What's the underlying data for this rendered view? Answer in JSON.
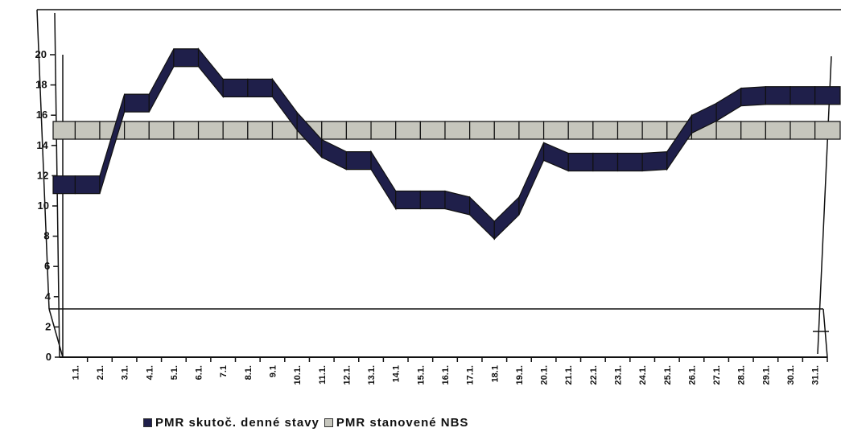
{
  "chart_data": {
    "type": "line",
    "categories": [
      "1.1.",
      "2.1.",
      "3.1.",
      "4.1.",
      "5.1.",
      "6.1.",
      "7.1",
      "8.1.",
      "9.1",
      "10.1.",
      "11.1.",
      "12.1.",
      "13.1.",
      "14.1",
      "15.1.",
      "16.1.",
      "17.1.",
      "18.1",
      "19.1.",
      "20.1.",
      "21.1.",
      "22.1.",
      "23.1.",
      "24.1.",
      "25.1.",
      "26.1.",
      "27.1.",
      "28.1.",
      "29.1.",
      "30.1.",
      "31.1."
    ],
    "series": [
      {
        "name": "PMR skutoč. denné stavy",
        "color": "#1f1f4a",
        "values": [
          11.4,
          11.4,
          16.8,
          16.8,
          19.8,
          19.8,
          17.8,
          17.8,
          17.8,
          15.6,
          13.8,
          13.0,
          13.0,
          10.4,
          10.4,
          10.4,
          10.0,
          8.4,
          10.0,
          13.6,
          12.9,
          12.9,
          12.9,
          12.9,
          13.0,
          15.4,
          16.2,
          17.2,
          17.3,
          17.3,
          17.3
        ]
      },
      {
        "name": "PMR stanovené NBS",
        "color": "#c6c6bd",
        "values": [
          15.0,
          15.0,
          15.0,
          15.0,
          15.0,
          15.0,
          15.0,
          15.0,
          15.0,
          15.0,
          15.0,
          15.0,
          15.0,
          15.0,
          15.0,
          15.0,
          15.0,
          15.0,
          15.0,
          15.0,
          15.0,
          15.0,
          15.0,
          15.0,
          15.0,
          15.0,
          15.0,
          15.0,
          15.0,
          15.0,
          15.0
        ]
      }
    ],
    "y_ticks": [
      "0",
      "2",
      "4",
      "6",
      "8",
      "10",
      "12",
      "14",
      "16",
      "18",
      "20"
    ],
    "ylim": [
      0,
      20
    ],
    "title": "",
    "xlabel": "",
    "ylabel": "",
    "grid": false,
    "legend_position": "bottom-left"
  }
}
